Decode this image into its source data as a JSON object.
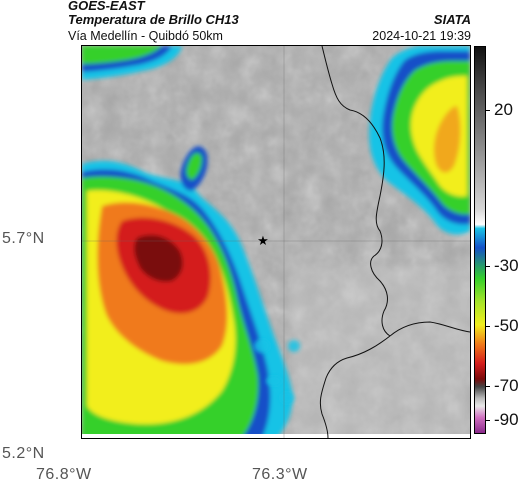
{
  "header": {
    "satellite": "GOES-EAST",
    "product": "Temperatura de Brillo CH13",
    "route": "Vía Medellín - Quibdó 50km",
    "organization": "SIATA",
    "timestamp": "2024-10-21 19:39"
  },
  "map": {
    "latitude_labels": [
      "5.7°N",
      "5.2°N"
    ],
    "longitude_labels": [
      "76.8°W",
      "76.3°W"
    ],
    "marker_icon": "star-icon",
    "colors": {
      "background_gray": "#a8a8a8",
      "cloud_edge_cyan": "#19c3e6",
      "cloud_blue": "#1450c8",
      "cloud_green": "#35d02a",
      "cloud_yellow": "#f2ee1e",
      "cloud_orange": "#f07a1a",
      "cloud_red": "#d41c1c",
      "cloud_darkred": "#7a0a0a"
    }
  },
  "colorbar": {
    "tick_labels": [
      "20",
      "-30",
      "-50",
      "-70",
      "-90"
    ],
    "units_shown": ""
  }
}
